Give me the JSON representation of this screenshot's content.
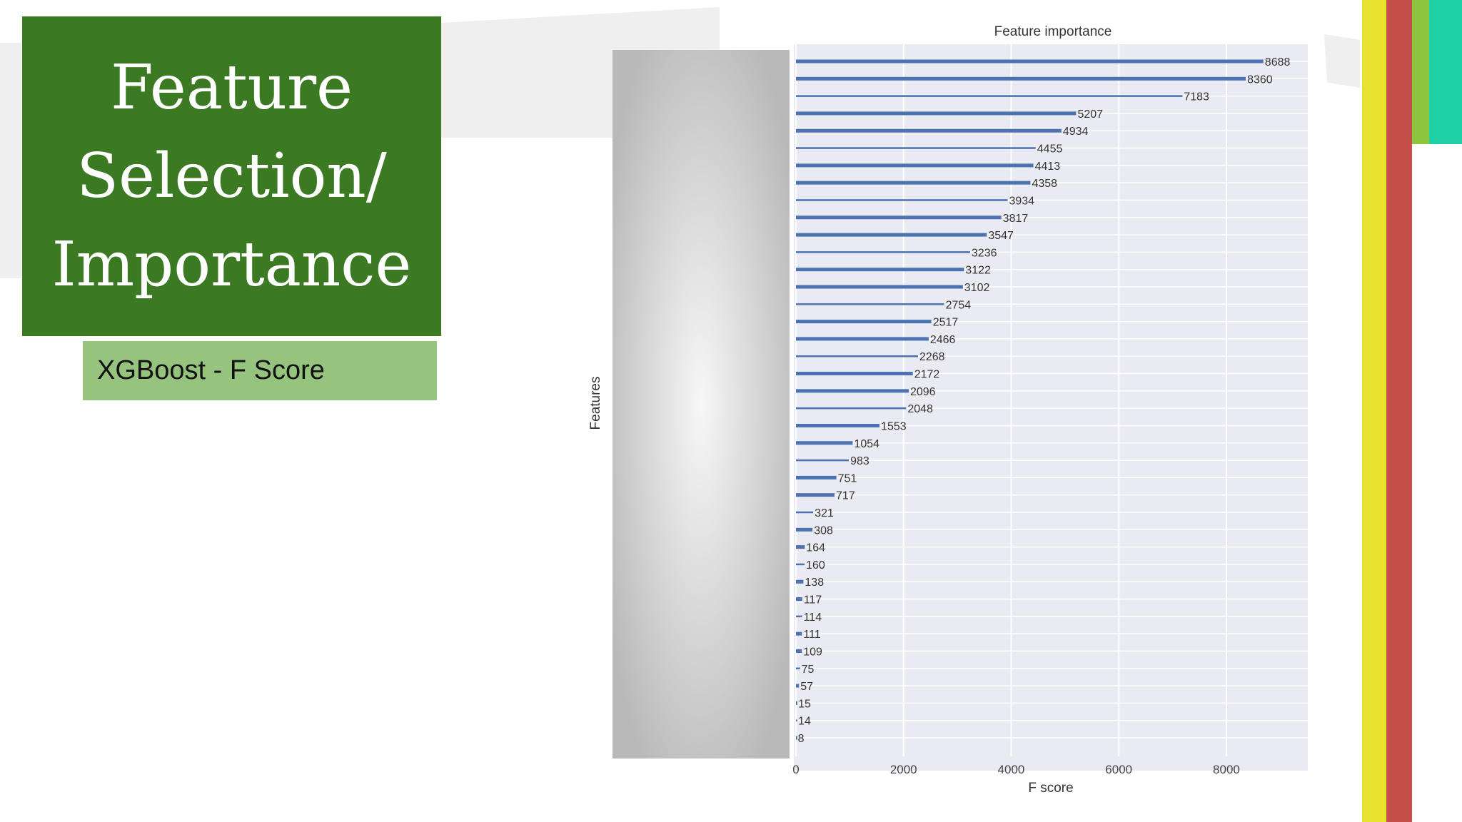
{
  "slide": {
    "title_lines": [
      "Feature",
      "Selection/",
      "Importance"
    ],
    "subtitle": "XGBoost - F Score"
  },
  "colors": {
    "title_bg": "#3b7a22",
    "subtitle_bg": "#96c47e",
    "bar": "#4c72b0",
    "plot_bg": "#eaeaf2",
    "stripe_yellow": "#e6e22e",
    "stripe_red": "#c5504b",
    "stripe_green": "#8dc63f",
    "stripe_teal": "#1fcfa6"
  },
  "chart_data": {
    "type": "bar",
    "orientation": "horizontal",
    "title": "Feature importance",
    "xlabel": "F score",
    "ylabel": "Features",
    "xlim": [
      0,
      9500
    ],
    "xticks": [
      0,
      2000,
      4000,
      6000,
      8000
    ],
    "grid": true,
    "values": [
      8688,
      8360,
      7183,
      5207,
      4934,
      4455,
      4413,
      4358,
      3934,
      3817,
      3547,
      3236,
      3122,
      3102,
      2754,
      2517,
      2466,
      2268,
      2172,
      2096,
      2048,
      1553,
      1054,
      983,
      751,
      717,
      321,
      308,
      164,
      160,
      138,
      117,
      114,
      111,
      109,
      75,
      57,
      15,
      14,
      8
    ]
  }
}
